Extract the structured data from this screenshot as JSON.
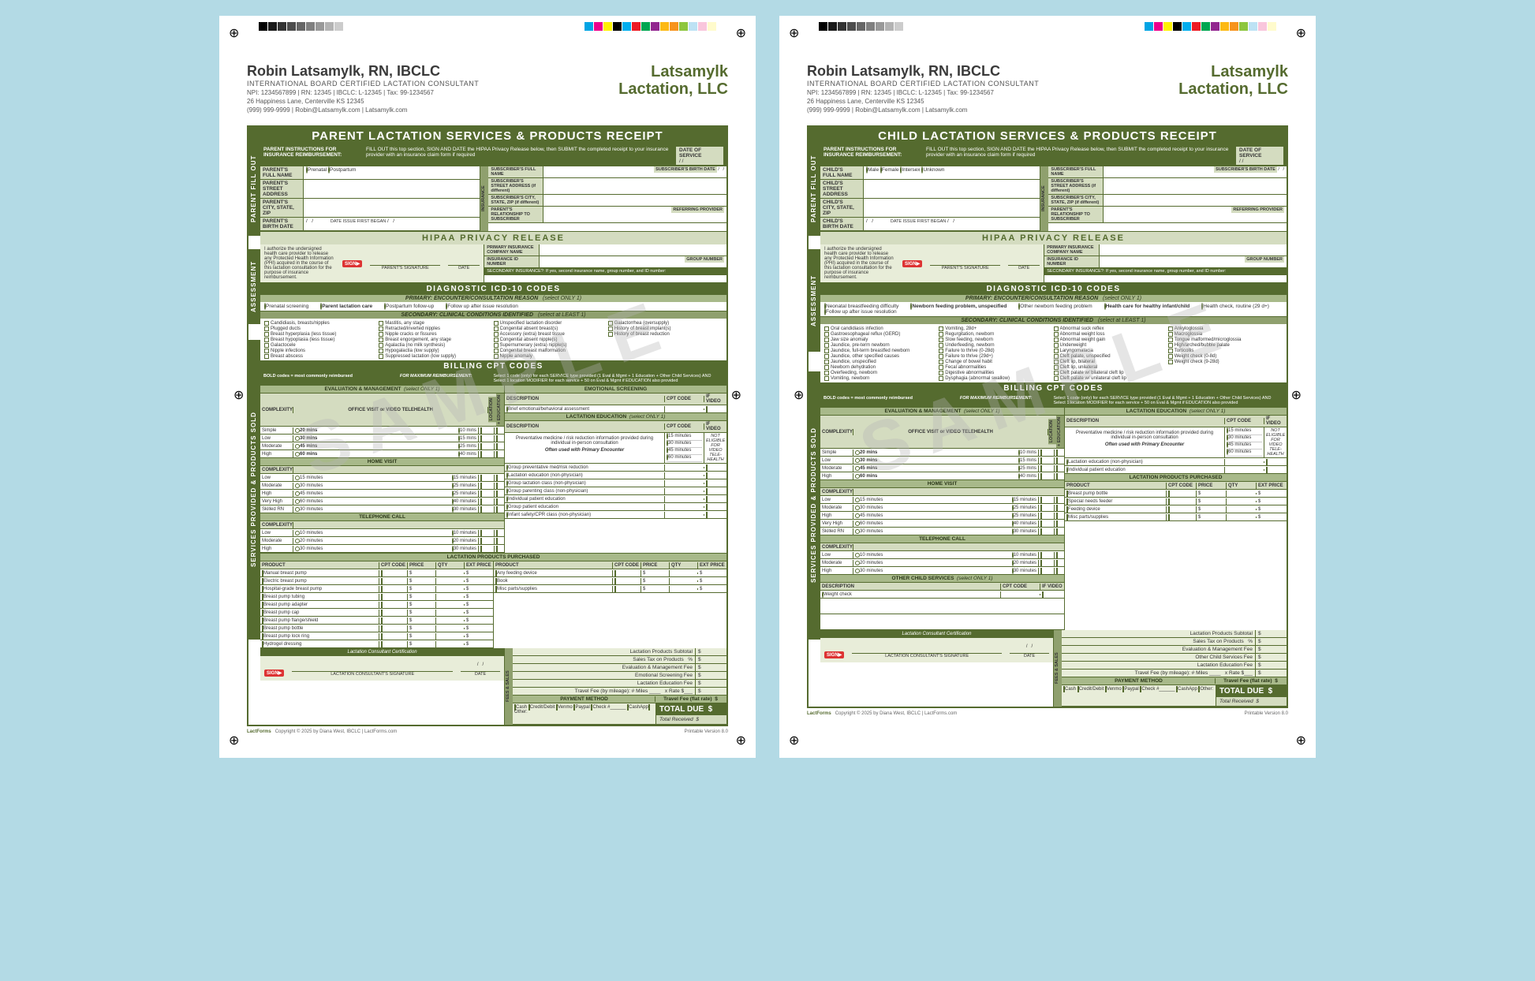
{
  "colors": {
    "primary": "#556b2f",
    "light": "#d4dcc0",
    "lighter": "#e8edd9",
    "mid": "#a8b98a",
    "bg": "#b3dae5"
  },
  "colorbar_left": [
    "#000000",
    "#1a1a1a",
    "#333333",
    "#4d4d4d",
    "#666666",
    "#808080",
    "#999999",
    "#b3b3b3",
    "#cccccc"
  ],
  "colorbar_right": [
    "#00a4e4",
    "#ec008c",
    "#fff200",
    "#000000",
    "#00aeef",
    "#ed1c24",
    "#00a651",
    "#92278f",
    "#fdb913",
    "#f7941d",
    "#8dc63f",
    "#bde2f4",
    "#f9c6dc",
    "#fffbcc"
  ],
  "letterhead": {
    "name": "Robin Latsamylk, RN, IBCLC",
    "title": "INTERNATIONAL BOARD CERTIFIED LACTATION CONSULTANT",
    "line1": "NPI: 1234567899 | RN: 12345 | IBCLC: L-12345 | Tax: 99-1234567",
    "line2": "26 Happiness Lane, Centerville KS 12345",
    "line3": "(999) 999-9999 | Robin@Latsamylk.com | Latsamylk.com",
    "company1": "Latsamylk",
    "company2": "Lactation, LLC"
  },
  "watermark": "SAMPLE",
  "pages": [
    {
      "title": "PARENT LACTATION SERVICES & PRODUCTS RECEIPT",
      "genderOpts": [
        "Prenatal",
        "Postpartum"
      ],
      "subject": "PARENT'S",
      "primaryLabel": "Parent lactation care",
      "primary": [
        "Prenatal screening",
        "Parent lactation care",
        "Postpartum follow-up",
        "Follow up after issue resolution"
      ],
      "secondary": [
        [
          "Candidiasis, breasts/nipples",
          "Plugged ducts",
          "Breast hyperplasia (less tissue)",
          "Breast hypoplasia (less tissue)",
          "Galactocele",
          "Nipple infections",
          "Breast abscess"
        ],
        [
          "Mastitis, any stage",
          "Retracted/inverted nipples",
          "Nipple cracks or fissures",
          "Breast engorgement, any stage",
          "Agalactia (no milk synthesis)",
          "Hypogalactia (low supply)",
          "Suppressed lactation (low supply)"
        ],
        [
          "Unspecified lactation disorder",
          "Congenital absent breast(s)",
          "Accessory (extra) breast tissue",
          "Congenital absent nipple(s)",
          "Supernumerary (extra) nipple(s)",
          "Congenital breast malformation",
          "Nipple anomaly"
        ],
        [
          "Galactorrhea (oversupply)",
          "History of breast implant(s)",
          "History of breast reduction"
        ]
      ],
      "emHeaders": [
        "COMPLEXITY",
        "OFFICE VISIT or VIDEO TELEHEALTH"
      ],
      "emRows": [
        [
          "Simple",
          "20 mins",
          "10 mins"
        ],
        [
          "Low",
          "30 mins",
          "15 mins"
        ],
        [
          "Moderate",
          "45 mins",
          "25 mins"
        ],
        [
          "High",
          "60 mins",
          "40 mins"
        ]
      ],
      "homeRows": [
        [
          "Low",
          "15 minutes",
          "15 minutes"
        ],
        [
          "Moderate",
          "30 minutes",
          "25 minutes"
        ],
        [
          "High",
          "45 minutes",
          "25 minutes"
        ],
        [
          "Very High",
          "60 minutes",
          "40 minutes"
        ],
        [
          "Skilled RN",
          "30 minutes",
          "30 minutes"
        ]
      ],
      "phoneRows": [
        [
          "Low",
          "10 minutes",
          "10 minutes"
        ],
        [
          "Moderate",
          "20 minutes",
          "20 minutes"
        ],
        [
          "High",
          "30 minutes",
          "30 minutes"
        ]
      ],
      "emotionalTitle": "EMOTIONAL SCREENING",
      "emotionalDesc": "Brief emotional/behavioral assessment",
      "eduTitle": "LACTATION EDUCATION",
      "eduDesc": "Preventative medicine / risk reduction information provided during individual in-person consultation",
      "eduNote": "Often used with Primary Encounter",
      "eduMins": [
        "15 minutes",
        "30 minutes",
        "45 minutes",
        "60 minutes",
        "60 minutes",
        "30 minutes"
      ],
      "eduItems": [
        "Group preventative med/risk reduction",
        "Lactation education (non-physician)",
        "Group lactation class (non-physician)",
        "Group parenting class (non-physician)",
        "Individual patient education",
        "Group patient education",
        "Infant safety/CPR class (non-physician)"
      ],
      "productsTitle": "LACTATION PRODUCTS PURCHASED",
      "prodHeaders": [
        "PRODUCT",
        "CPT CODE",
        "PRICE",
        "QTY",
        "EXT PRICE"
      ],
      "productsL": [
        "Manual breast pump",
        "Electric breast pump",
        "Hospital-grade breast pump",
        "Breast pump tubing",
        "Breast pump adapter",
        "Breast pump cap",
        "Breast pump flange/shield",
        "Breast pump bottle",
        "Breast pump lock ring",
        "Hydrogel dressing"
      ],
      "productsR": [
        "Any feeding device",
        "Book",
        "Misc parts/supplies"
      ],
      "feesTitle": "FEES & SALES",
      "feeRows": [
        "Lactation Products Subtotal",
        "Sales Tax on Products",
        "Evaluation & Management Fee",
        "Emotional Screening Fee",
        "Lactation Education Fee"
      ],
      "travelLabel": "Travel Fee (by mileage): # Miles",
      "travelRate": "x Rate $",
      "travelFlat": "Travel Fee (flat rate)",
      "payTitle": "PAYMENT METHOD",
      "payOpts": [
        "Cash",
        "Credit/Debit",
        "Venmo",
        "Paypal",
        "Check #______",
        "CashApp",
        "Other:"
      ],
      "totalDue": "TOTAL DUE",
      "totalRec": "Total Received",
      "certTitle": "Lactation Consultant Certification",
      "certSig": "LACTATION CONSULTANT'S SIGNATURE",
      "hasOtherServices": false
    },
    {
      "title": "CHILD LACTATION SERVICES & PRODUCTS RECEIPT",
      "genderOpts": [
        "Male",
        "Female",
        "Intersex",
        "Unknown"
      ],
      "subject": "CHILD'S",
      "primaryLabel": "Health care for healthy infant/child",
      "primary": [
        "Neonatal breastfeeding difficulty",
        "Newborn feeding problem, unspecified",
        "Other newborn feeding problem",
        "Health care for healthy infant/child",
        "Health check, routine (29 d+)",
        "Follow up after issue resolution"
      ],
      "secondary": [
        [
          "Oral candidiasis infection",
          "Gastroesophageal reflux (GERD)",
          "Jaw size anomaly",
          "Jaundice, pre-term newborn",
          "Jaundice, full-term breastfed newborn",
          "Jaundice, other specified causes",
          "Jaundice, unspecified",
          "Newborn dehydration",
          "Overfeeding, newborn",
          "Vomiting, newborn"
        ],
        [
          "Vomiting, 28d+",
          "Regurgitation, newborn",
          "Slow feeding, newborn",
          "Underfeeding, newborn",
          "Failure to thrive (0-28d)",
          "Failure to thrive (29d+)",
          "Change of bowel habit",
          "Fecal abnormalities",
          "Digestive abnormalities",
          "Dysphagia (abnormal swallow)"
        ],
        [
          "Abnormal suck reflex",
          "Abnormal weight loss",
          "Abnormal weight gain",
          "Underweight",
          "Laryngomalacia",
          "Cleft palate, unspecified",
          "Cleft lip, bilateral",
          "Cleft lip, unilateral",
          "Cleft palate w/ bilateral cleft lip",
          "Cleft palate w/ unilateral cleft lip"
        ],
        [
          "Ankyloglossia",
          "Macroglossia",
          "Tongue malformed/microglossia",
          "High/arched/bubble palate",
          "Torticollis",
          "Weight check (0-8d)",
          "Weight check (9-28d)"
        ]
      ],
      "emHeaders": [
        "COMPLEXITY",
        "OFFICE VISIT or VIDEO TELEHEALTH"
      ],
      "emRows": [
        [
          "Simple",
          "20 mins",
          "10 mins"
        ],
        [
          "Low",
          "30 mins",
          "15 mins"
        ],
        [
          "Moderate",
          "45 mins",
          "25 mins"
        ],
        [
          "High",
          "60 mins",
          "40 mins"
        ]
      ],
      "homeRows": [
        [
          "Low",
          "15 minutes",
          "15 minutes"
        ],
        [
          "Moderate",
          "30 minutes",
          "25 minutes"
        ],
        [
          "High",
          "45 minutes",
          "25 minutes"
        ],
        [
          "Very High",
          "60 minutes",
          "40 minutes"
        ],
        [
          "Skilled RN",
          "30 minutes",
          "30 minutes"
        ]
      ],
      "phoneRows": [
        [
          "Low",
          "10 minutes",
          "10 minutes"
        ],
        [
          "Moderate",
          "20 minutes",
          "20 minutes"
        ],
        [
          "High",
          "30 minutes",
          "30 minutes"
        ]
      ],
      "eduTitle": "LACTATION EDUCATION",
      "eduDesc": "Preventative medicine / risk reduction information provided during individual in-person consultation",
      "eduNote": "Often used with Primary Encounter",
      "eduMins": [
        "15 minutes",
        "30 minutes",
        "45 minutes",
        "60 minutes",
        "30 minutes"
      ],
      "eduItems": [
        "Lactation education (non-physician)",
        "Individual patient education"
      ],
      "productsTitle": "LACTATION PRODUCTS PURCHASED",
      "prodHeaders": [
        "PRODUCT",
        "CPT CODE",
        "PRICE",
        "QTY",
        "EXT PRICE"
      ],
      "productsL": [
        "Breast pump bottle",
        "Special needs feeder",
        "Feeding device",
        "Misc parts/supplies"
      ],
      "otherTitle": "OTHER CHILD SERVICES",
      "otherRows": [
        "Weight check"
      ],
      "feeRows": [
        "Lactation Products Subtotal",
        "Sales Tax on Products",
        "Evaluation & Management Fee",
        "Other Child Services Fee",
        "Lactation Education Fee"
      ],
      "travelLabel": "Travel Fee (by mileage): # Miles",
      "travelRate": "x Rate $",
      "travelFlat": "Travel Fee (flat rate)",
      "payTitle": "PAYMENT METHOD",
      "payOpts": [
        "Cash",
        "Credit/Debit",
        "Venmo",
        "Paypal",
        "Check #______",
        "CashApp",
        "Other:"
      ],
      "totalDue": "TOTAL DUE",
      "totalRec": "Total Received",
      "certTitle": "Lactation Consultant Certification",
      "certSig": "LACTATION CONSULTANT'S SIGNATURE",
      "hasOtherServices": true
    }
  ],
  "common": {
    "instructLabel": "PARENT INSTRUCTIONS FOR INSURANCE REIMBURSEMENT:",
    "instructText": "FILL OUT this top section, SIGN AND DATE the HIPAA Privacy Release below, then SUBMIT the completed receipt to your insurance provider with an insurance claim form if required",
    "dosLabel": "DATE OF SERVICE",
    "dosVal": "/     /",
    "fields": [
      "FULL NAME",
      "STREET ADDRESS",
      "CITY, STATE, ZIP",
      "BIRTH DATE"
    ],
    "dateIssue": "DATE ISSUE FIRST BEGAN",
    "insLabel": "INSURANCE",
    "insFields": [
      "SUBSCRIBER'S FULL NAME",
      "SUBSCRIBER'S STREET ADDRESS (if different)",
      "SUBSCRIBER'S CITY, STATE, ZIP (if different)",
      "PARENT'S RELATIONSHIP TO SUBSCRIBER",
      "PRIMARY INSURANCE COMPANY NAME",
      "INSURANCE ID NUMBER"
    ],
    "subBirth": "SUBSCRIBER'S BIRTH DATE",
    "refProv": "REFERRING PROVIDER",
    "groupNum": "GROUP NUMBER",
    "secIns": "SECONDARY INSURANCE?: If yes, second insurance name, group number, and ID number:",
    "hipaaTitle": "HIPAA PRIVACY RELEASE",
    "hipaaText": "I authorize the undersigned health care provider to release any Protected Health Information (PHI) acquired in the course of this lactation consultation for the purpose of insurance reimbursement.",
    "parentSig": "PARENT'S SIGNATURE",
    "date": "DATE",
    "icdTitle": "DIAGNOSTIC ICD-10 CODES",
    "primaryBar": "PRIMARY:  ENCOUNTER/CONSULTATION REASON",
    "secondaryBar": "SECONDARY:  CLINICAL CONDITIONS IDENTIFIED",
    "selectOne": "(select ONLY 1)",
    "selectLeast": "(select at LEAST 1)",
    "cptTitle": "BILLING CPT CODES",
    "boldNote": "BOLD codes = most commonly reimbursed",
    "maxReimb": "FOR MAXIMUM REIMBURSEMENT:",
    "maxText": "Select 1 code (only) for each SERVICE type provided (1 Eval & Mgmt + 1 Education + Other Child Services) AND Select 1 location MODIFIER for each service + 50 on Eval & Mgmt if EDUCATION also provided",
    "emTitle": "EVALUATION & MANAGEMENT",
    "homeTitle": "HOME VISIT",
    "phoneTitle": "TELEPHONE CALL",
    "locHdr": "LOCATION",
    "locSub": "OFFICE | VIDEO",
    "eduHdr": "+ EDUCATION",
    "descHdr": "DESCRIPTION",
    "cptHdr": "CPT CODE",
    "ifVideo": "IF VIDEO",
    "notElig": "NOT ELIGIBLE FOR VIDEO TELE-HEALTH",
    "sideLabels": [
      "PARENT FILL OUT",
      "ASSESSMENT",
      "SERVICES PROVIDED & PRODUCTS SOLD"
    ],
    "copyright": "Copyright © 2025 by Diana West, IBCLC | LactForms.com",
    "version": "Printable Version 8.0",
    "brand": "LactForms"
  }
}
